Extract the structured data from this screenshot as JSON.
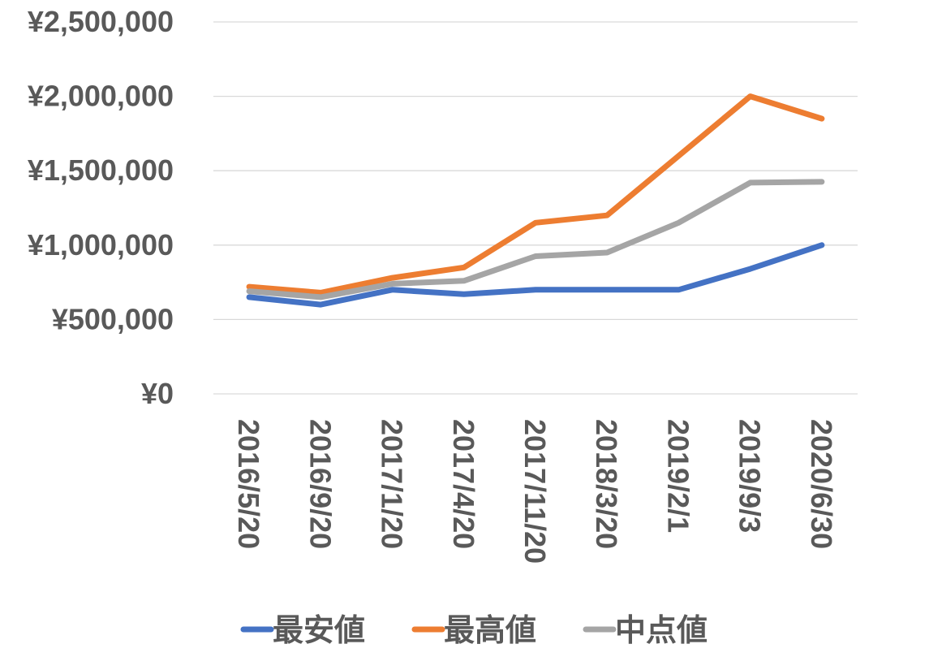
{
  "chart_data": {
    "type": "line",
    "title": "",
    "xlabel": "",
    "ylabel": "",
    "categories": [
      "2016/5/20",
      "2016/9/20",
      "2017/1/20",
      "2017/4/20",
      "2017/11/20",
      "2018/3/20",
      "2019/2/1",
      "2019/9/3",
      "2020/6/30"
    ],
    "yticks": [
      "¥0",
      "¥500,000",
      "¥1,000,000",
      "¥1,500,000",
      "¥2,000,000",
      "¥2,500,000"
    ],
    "ylim": [
      0,
      2500000
    ],
    "grid": true,
    "legend_position": "bottom",
    "series": [
      {
        "name": "最安値",
        "color": "#4472C4",
        "values": [
          650000,
          600000,
          700000,
          670000,
          700000,
          700000,
          700000,
          840000,
          1000000
        ]
      },
      {
        "name": "最高値",
        "color": "#ED7D31",
        "values": [
          720000,
          680000,
          780000,
          850000,
          1150000,
          1200000,
          1600000,
          2000000,
          1850000
        ]
      },
      {
        "name": "中点値",
        "color": "#A5A5A5",
        "values": [
          690000,
          650000,
          740000,
          760000,
          925000,
          950000,
          1150000,
          1420000,
          1425000
        ]
      }
    ],
    "colors": {
      "tick_text": "#595959",
      "grid": "#D9D9D9"
    }
  }
}
